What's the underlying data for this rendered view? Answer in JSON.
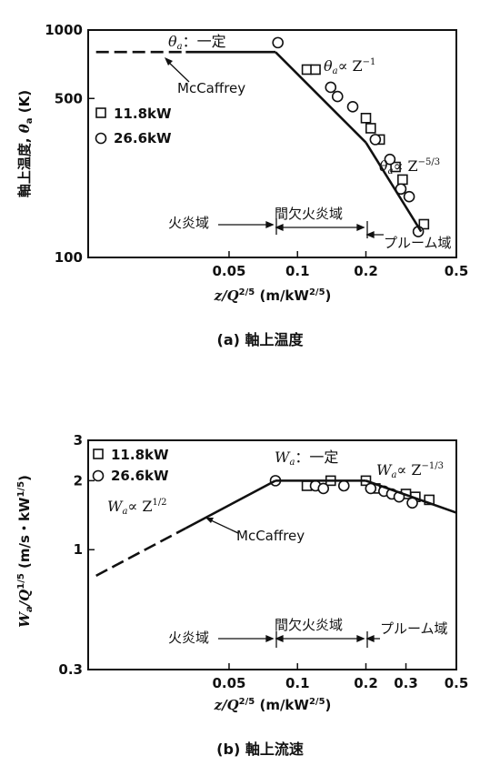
{
  "chart_data": [
    {
      "type": "line",
      "caption": "(a) 軸上温度",
      "xlabel": "z/Q^{2/5} (m/kW^{2/5})",
      "ylabel": "軸上温度, θ_a (K)",
      "x_scale": "log",
      "y_scale": "log",
      "xlim": [
        0.012,
        0.5
      ],
      "ylim": [
        100,
        1000
      ],
      "x_ticks": [
        {
          "value": 0.05,
          "label": "0.05"
        },
        {
          "value": 0.1,
          "label": "0.1"
        },
        {
          "value": 0.2,
          "label": "0.2"
        },
        {
          "value": 0.5,
          "label": "0.5"
        }
      ],
      "y_ticks": [
        {
          "value": 100,
          "label": "100"
        },
        {
          "value": 500,
          "label": "500"
        },
        {
          "value": 1000,
          "label": "1000"
        }
      ],
      "series": [
        {
          "name": "11.8kW",
          "marker": "square",
          "x": [
            0.11,
            0.12,
            0.2,
            0.21,
            0.23,
            0.27,
            0.29,
            0.36
          ],
          "y": [
            670,
            670,
            410,
            370,
            330,
            250,
            220,
            140
          ]
        },
        {
          "name": "26.6kW",
          "marker": "circle",
          "x": [
            0.082,
            0.14,
            0.15,
            0.175,
            0.22,
            0.255,
            0.285,
            0.31,
            0.34
          ],
          "y": [
            880,
            560,
            510,
            460,
            330,
            270,
            200,
            185,
            130
          ]
        },
        {
          "name": "McCaffrey",
          "style": "line",
          "x": [
            0.013,
            0.08,
            0.2,
            0.35
          ],
          "y": [
            800,
            800,
            320,
            130
          ]
        }
      ],
      "annotations": {
        "constant": "θ_a：一定",
        "mccaffrey": "McCaffrey",
        "law_z1": "θ_a∝ Z^-1",
        "law_z53": "θ_a∝ Z^-5/3"
      },
      "zones": {
        "flame": "火炎域",
        "intermittent": "間欠火炎域",
        "plume": "プルーム域"
      }
    },
    {
      "type": "line",
      "caption": "(b) 軸上流速",
      "xlabel": "z/Q^{2/5} (m/kW^{2/5})",
      "ylabel": "W_a/Q^{1/5} (m/s・kW^{1/5})",
      "x_scale": "log",
      "y_scale": "log",
      "xlim": [
        0.012,
        0.5
      ],
      "ylim": [
        0.3,
        3
      ],
      "x_ticks": [
        {
          "value": 0.05,
          "label": "0.05"
        },
        {
          "value": 0.1,
          "label": "0.1"
        },
        {
          "value": 0.2,
          "label": "0.2"
        },
        {
          "value": 0.3,
          "label": "0.3"
        },
        {
          "value": 0.5,
          "label": "0.5"
        }
      ],
      "y_ticks": [
        {
          "value": 0.3,
          "label": "0.3"
        },
        {
          "value": 1,
          "label": "1"
        },
        {
          "value": 2,
          "label": "2"
        },
        {
          "value": 3,
          "label": "3"
        }
      ],
      "series": [
        {
          "name": "11.8kW",
          "marker": "square",
          "x": [
            0.11,
            0.14,
            0.2,
            0.22,
            0.3,
            0.33,
            0.38
          ],
          "y": [
            1.9,
            2.0,
            2.0,
            1.85,
            1.75,
            1.7,
            1.65
          ]
        },
        {
          "name": "26.6kW",
          "marker": "circle",
          "x": [
            0.08,
            0.12,
            0.13,
            0.16,
            0.21,
            0.24,
            0.26,
            0.28,
            0.32
          ],
          "y": [
            2.0,
            1.9,
            1.85,
            1.9,
            1.85,
            1.8,
            1.75,
            1.7,
            1.6
          ]
        },
        {
          "name": "McCaffrey",
          "style": "line",
          "x": [
            0.013,
            0.08,
            0.2,
            0.5
          ],
          "y": [
            0.77,
            2.0,
            2.0,
            1.45
          ]
        }
      ],
      "annotations": {
        "constant": "W_a：一定",
        "mccaffrey": "McCaffrey",
        "law_z12": "W_a∝ Z^1/2",
        "law_z13": "W_a∝ Z^-1/3"
      },
      "zones": {
        "flame": "火炎域",
        "intermittent": "間欠火炎域",
        "plume": "プルーム域"
      }
    }
  ]
}
